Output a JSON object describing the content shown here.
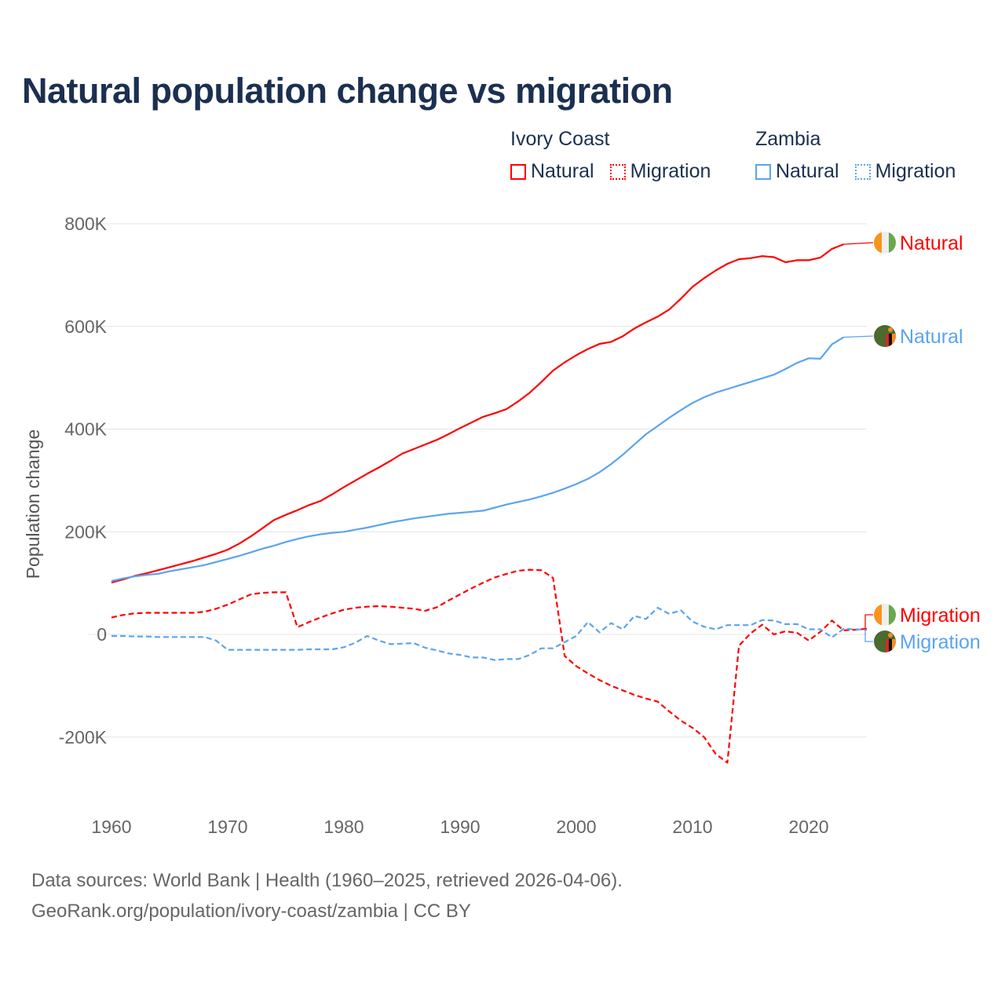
{
  "title": "Natural population change vs migration",
  "legend": {
    "groups": [
      {
        "title": "Ivory Coast",
        "color": "#ff0000",
        "items": [
          {
            "label": "Natural",
            "style": "solid"
          },
          {
            "label": "Migration",
            "style": "dotted"
          }
        ]
      },
      {
        "title": "Zambia",
        "color": "#5ba4ee",
        "items": [
          {
            "label": "Natural",
            "style": "solid"
          },
          {
            "label": "Migration",
            "style": "dotted"
          }
        ]
      }
    ]
  },
  "footer": {
    "line1": "Data sources: World Bank | Health (1960–2025, retrieved 2026-04-06).",
    "line2": "GeoRank.org/population/ivory-coast/zambia | CC BY"
  },
  "chart_data": {
    "type": "line",
    "title": "Natural population change vs migration",
    "xlabel": "",
    "ylabel": "Population change",
    "xlim": [
      1960,
      2025
    ],
    "ylim": [
      -300000,
      800000
    ],
    "grid": true,
    "x_start": 1960,
    "x_end": 2025,
    "xticks": [
      {
        "value": 1960,
        "label": "1960"
      },
      {
        "value": 1970,
        "label": "1970"
      },
      {
        "value": 1980,
        "label": "1980"
      },
      {
        "value": 1990,
        "label": "1990"
      },
      {
        "value": 2000,
        "label": "2000"
      },
      {
        "value": 2010,
        "label": "2010"
      },
      {
        "value": 2020,
        "label": "2020"
      }
    ],
    "yticks": [
      {
        "value": 800,
        "label": "800K"
      },
      {
        "value": 600,
        "label": "600K"
      },
      {
        "value": 400,
        "label": "400K"
      },
      {
        "value": 200,
        "label": "200K"
      },
      {
        "value": 0,
        "label": "0"
      },
      {
        "value": -200,
        "label": "-200K"
      }
    ],
    "units": "thousands",
    "series": [
      {
        "name": "Ivory Coast Natural",
        "end_label": "Natural",
        "country": "Ivory Coast",
        "color": "#ff0000",
        "dash": "solid",
        "values": [
          101,
          107,
          114,
          119,
          125,
          131,
          137,
          143,
          150,
          157,
          165,
          177,
          191,
          207,
          223,
          233,
          242,
          252,
          260,
          273,
          287,
          300,
          313,
          325,
          338,
          352,
          361,
          370,
          379,
          390,
          402,
          413,
          424,
          431,
          439,
          454,
          471,
          492,
          514,
          530,
          544,
          556,
          566,
          570,
          581,
          596,
          608,
          619,
          633,
          654,
          677,
          694,
          709,
          722,
          731,
          733,
          737,
          735,
          725,
          729,
          729,
          734,
          751,
          760,
          null,
          null
        ]
      },
      {
        "name": "Zambia Natural",
        "end_label": "Natural",
        "country": "Zambia",
        "color": "#5ba4ee",
        "dash": "solid",
        "values": [
          104,
          109,
          113,
          116,
          118,
          123,
          127,
          131,
          135,
          141,
          147,
          153,
          160,
          167,
          173,
          180,
          186,
          191,
          195,
          198,
          200,
          204,
          208,
          213,
          218,
          222,
          226,
          229,
          232,
          235,
          237,
          239,
          241,
          247,
          253,
          258,
          263,
          269,
          276,
          284,
          293,
          303,
          316,
          332,
          350,
          370,
          390,
          406,
          422,
          437,
          451,
          462,
          471,
          478,
          485,
          492,
          499,
          506,
          517,
          529,
          538,
          537,
          565,
          579,
          null,
          null
        ]
      },
      {
        "name": "Ivory Coast Migration",
        "end_label": "Migration",
        "country": "Ivory Coast",
        "color": "#ff0000",
        "dash": "dashed",
        "values": [
          33,
          38,
          41,
          42,
          42,
          42,
          42,
          42,
          44,
          50,
          58,
          68,
          78,
          81,
          82,
          82,
          14,
          24,
          33,
          41,
          48,
          52,
          54,
          55,
          54,
          52,
          50,
          46,
          53,
          66,
          78,
          90,
          101,
          111,
          118,
          124,
          126,
          125,
          110,
          -42,
          -62,
          -76,
          -89,
          -100,
          -109,
          -118,
          -125,
          -131,
          -150,
          -168,
          -182,
          -200,
          -233,
          -250,
          -22,
          2,
          19,
          0,
          6,
          3,
          -12,
          5,
          27,
          8,
          9,
          11
        ]
      },
      {
        "name": "Zambia Migration",
        "end_label": "Migration",
        "country": "Zambia",
        "color": "#5ba4ee",
        "dash": "dashed",
        "values": [
          -3,
          -3,
          -4,
          -4,
          -5,
          -5,
          -5,
          -5,
          -5,
          -12,
          -30,
          -30,
          -30,
          -30,
          -30,
          -30,
          -30,
          -29,
          -29,
          -29,
          -25,
          -16,
          -3,
          -12,
          -19,
          -18,
          -17,
          -26,
          -31,
          -37,
          -40,
          -45,
          -45,
          -50,
          -48,
          -48,
          -40,
          -27,
          -27,
          -15,
          -3,
          24,
          4,
          22,
          10,
          36,
          30,
          52,
          40,
          47,
          25,
          15,
          10,
          18,
          18,
          18,
          28,
          27,
          20,
          20,
          10,
          10,
          -6,
          11,
          10,
          9
        ]
      }
    ]
  }
}
